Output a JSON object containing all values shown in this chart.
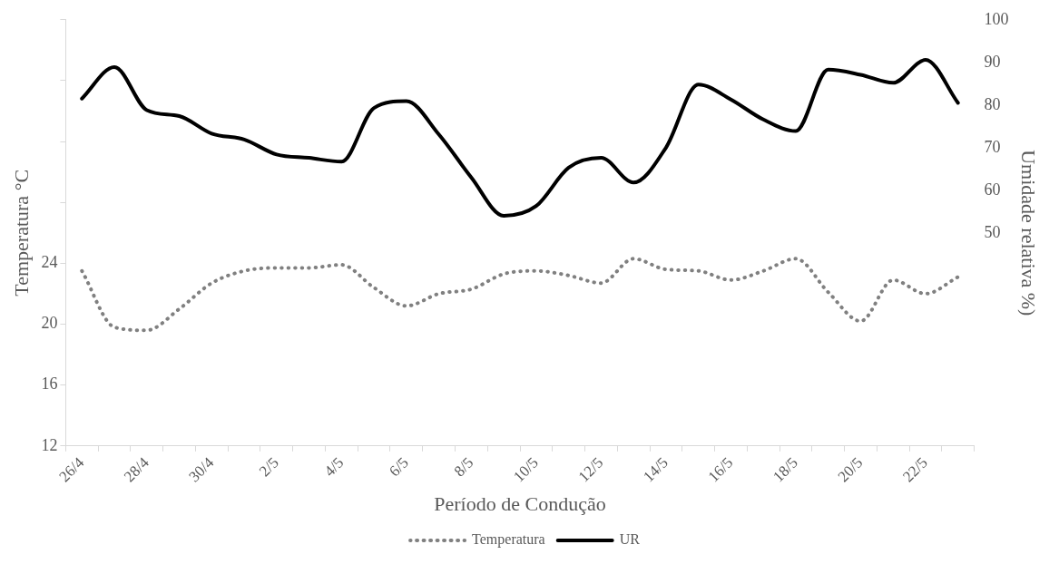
{
  "chart_data": {
    "type": "line",
    "xlabel": "Período de Condução",
    "ylabel": "Temperatura °C",
    "y2label": "Umidade relativa %)",
    "categories": [
      "26/4",
      null,
      "28/4",
      null,
      "30/4",
      null,
      "2/5",
      null,
      "4/5",
      null,
      "6/5",
      null,
      "8/5",
      null,
      "10/5",
      null,
      "12/5",
      null,
      "14/5",
      null,
      "16/5",
      null,
      "18/5",
      null,
      "20/5",
      null,
      "22/5",
      null
    ],
    "series": [
      {
        "name": "Temperatura",
        "color": "#808080",
        "line_style": "dotted",
        "values": [
          23.5,
          19.8,
          19.6,
          21.0,
          22.7,
          23.5,
          23.7,
          23.7,
          23.9,
          22.4,
          21.2,
          22.0,
          22.3,
          23.3,
          23.5,
          23.2,
          22.7,
          24.3,
          23.6,
          23.5,
          22.9,
          23.5,
          24.3,
          22.1,
          20.2,
          22.9,
          22.0,
          23.1
        ]
      },
      {
        "name": "UR",
        "color": "#000000",
        "line_style": "solid",
        "axis": "y2",
        "values": [
          81.5,
          88.9,
          78.8,
          77.4,
          73.3,
          71.9,
          68.4,
          67.6,
          66.7,
          79.3,
          80.9,
          73.1,
          63.0,
          54.0,
          56.3,
          65.3,
          67.6,
          61.8,
          70.0,
          84.8,
          81.3,
          76.6,
          73.9,
          88.3,
          87.1,
          85.2,
          90.6,
          80.5
        ]
      }
    ],
    "ylim": [
      12,
      40
    ],
    "yticks": [
      12,
      16,
      20,
      24,
      {
        "value": 28,
        "label": null
      },
      {
        "value": 32,
        "label": null
      },
      {
        "value": 36,
        "label": null
      },
      {
        "value": 40,
        "label": null
      }
    ],
    "y2lim": [
      0,
      100
    ],
    "y2ticks": [
      50,
      60,
      70,
      80,
      90,
      100
    ],
    "grid": false,
    "legend": "bottom",
    "marker": "none"
  }
}
